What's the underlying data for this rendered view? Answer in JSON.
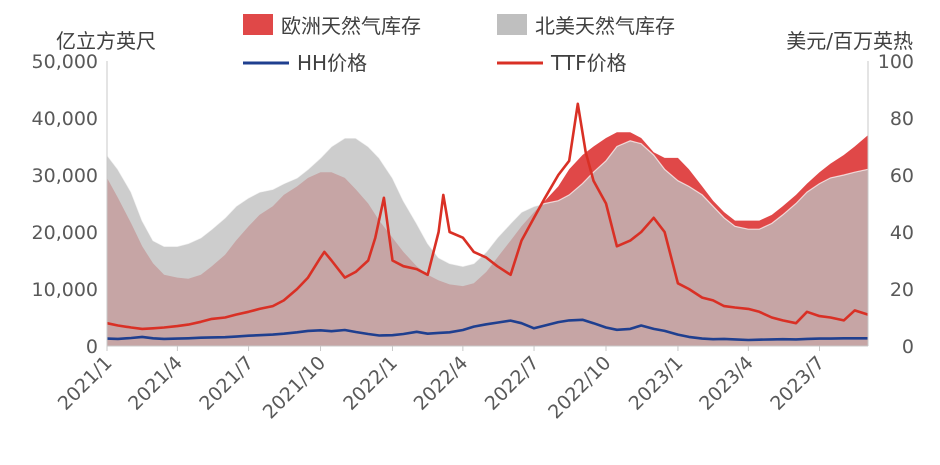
{
  "chart_data": {
    "type": "area",
    "left_axis_unit": "亿立方英尺",
    "right_axis_unit": "美元/百万英热",
    "y_left_lim": [
      0,
      50000
    ],
    "y_right_lim": [
      0,
      100
    ],
    "y_left_ticks": [
      "0",
      "10,000",
      "20,000",
      "30,000",
      "40,000",
      "50,000"
    ],
    "y_right_ticks": [
      "0",
      "20",
      "40",
      "60",
      "80",
      "100"
    ],
    "x_ticks": [
      "2021/1",
      "2021/4",
      "2021/7",
      "2021/10",
      "2022/1",
      "2022/4",
      "2022/7",
      "2022/10",
      "2023/1",
      "2023/4",
      "2023/7"
    ],
    "legend_position": "top-center",
    "colors": {
      "eu_storage": "#e04848",
      "us_storage": "#bfbfbf",
      "hh": "#1f3f8f",
      "ttf": "#d93025",
      "axis_text": "#595959"
    },
    "series": [
      {
        "name": "欧洲天然气库存",
        "axis": "left",
        "kind": "area",
        "points": [
          [
            "2021-01-01",
            29500
          ],
          [
            "2021-01-15",
            26000
          ],
          [
            "2021-02-01",
            21500
          ],
          [
            "2021-02-15",
            17500
          ],
          [
            "2021-03-01",
            14500
          ],
          [
            "2021-03-15",
            12500
          ],
          [
            "2021-04-01",
            12000
          ],
          [
            "2021-04-15",
            11800
          ],
          [
            "2021-05-01",
            12500
          ],
          [
            "2021-05-15",
            14000
          ],
          [
            "2021-06-01",
            16000
          ],
          [
            "2021-06-15",
            18500
          ],
          [
            "2021-07-01",
            21000
          ],
          [
            "2021-07-15",
            23000
          ],
          [
            "2021-08-01",
            24500
          ],
          [
            "2021-08-15",
            26500
          ],
          [
            "2021-09-01",
            28000
          ],
          [
            "2021-09-15",
            29500
          ],
          [
            "2021-10-01",
            30500
          ],
          [
            "2021-10-15",
            30500
          ],
          [
            "2021-11-01",
            29500
          ],
          [
            "2021-11-15",
            27500
          ],
          [
            "2021-12-01",
            25000
          ],
          [
            "2021-12-15",
            22000
          ],
          [
            "2022-01-01",
            19000
          ],
          [
            "2022-01-15",
            16500
          ],
          [
            "2022-02-01",
            14000
          ],
          [
            "2022-02-15",
            12500
          ],
          [
            "2022-03-01",
            11500
          ],
          [
            "2022-03-15",
            10800
          ],
          [
            "2022-04-01",
            10500
          ],
          [
            "2022-04-15",
            11000
          ],
          [
            "2022-05-01",
            13000
          ],
          [
            "2022-05-15",
            15500
          ],
          [
            "2022-06-01",
            18500
          ],
          [
            "2022-06-15",
            21000
          ],
          [
            "2022-07-01",
            23500
          ],
          [
            "2022-07-15",
            25500
          ],
          [
            "2022-08-01",
            28000
          ],
          [
            "2022-08-15",
            31000
          ],
          [
            "2022-09-01",
            33500
          ],
          [
            "2022-09-15",
            35000
          ],
          [
            "2022-10-01",
            36500
          ],
          [
            "2022-10-15",
            37500
          ],
          [
            "2022-11-01",
            37500
          ],
          [
            "2022-11-15",
            36500
          ],
          [
            "2022-12-01",
            34000
          ],
          [
            "2022-12-15",
            33000
          ],
          [
            "2023-01-01",
            33000
          ],
          [
            "2023-01-15",
            31000
          ],
          [
            "2023-02-01",
            28000
          ],
          [
            "2023-02-15",
            25500
          ],
          [
            "2023-03-01",
            23500
          ],
          [
            "2023-03-15",
            22000
          ],
          [
            "2023-04-01",
            22000
          ],
          [
            "2023-04-15",
            22000
          ],
          [
            "2023-05-01",
            23000
          ],
          [
            "2023-05-15",
            24500
          ],
          [
            "2023-06-01",
            26500
          ],
          [
            "2023-06-15",
            28500
          ],
          [
            "2023-07-01",
            30500
          ],
          [
            "2023-07-15",
            32000
          ],
          [
            "2023-08-01",
            33500
          ],
          [
            "2023-08-15",
            35000
          ],
          [
            "2023-09-01",
            37000
          ]
        ]
      },
      {
        "name": "北美天然气库存",
        "axis": "left",
        "kind": "area",
        "points": [
          [
            "2021-01-01",
            33500
          ],
          [
            "2021-01-15",
            31000
          ],
          [
            "2021-02-01",
            27000
          ],
          [
            "2021-02-15",
            22000
          ],
          [
            "2021-03-01",
            18500
          ],
          [
            "2021-03-15",
            17500
          ],
          [
            "2021-04-01",
            17500
          ],
          [
            "2021-04-15",
            18000
          ],
          [
            "2021-05-01",
            19000
          ],
          [
            "2021-05-15",
            20500
          ],
          [
            "2021-06-01",
            22500
          ],
          [
            "2021-06-15",
            24500
          ],
          [
            "2021-07-01",
            26000
          ],
          [
            "2021-07-15",
            27000
          ],
          [
            "2021-08-01",
            27500
          ],
          [
            "2021-08-15",
            28500
          ],
          [
            "2021-09-01",
            29500
          ],
          [
            "2021-09-15",
            31000
          ],
          [
            "2021-10-01",
            33000
          ],
          [
            "2021-10-15",
            35000
          ],
          [
            "2021-11-01",
            36500
          ],
          [
            "2021-11-15",
            36500
          ],
          [
            "2021-12-01",
            35000
          ],
          [
            "2021-12-15",
            33000
          ],
          [
            "2022-01-01",
            29500
          ],
          [
            "2022-01-15",
            25500
          ],
          [
            "2022-02-01",
            21500
          ],
          [
            "2022-02-15",
            18000
          ],
          [
            "2022-03-01",
            15500
          ],
          [
            "2022-03-15",
            14500
          ],
          [
            "2022-04-01",
            14000
          ],
          [
            "2022-04-15",
            14500
          ],
          [
            "2022-05-01",
            16500
          ],
          [
            "2022-05-15",
            19000
          ],
          [
            "2022-06-01",
            21500
          ],
          [
            "2022-06-15",
            23500
          ],
          [
            "2022-07-01",
            24500
          ],
          [
            "2022-07-15",
            25000
          ],
          [
            "2022-08-01",
            25500
          ],
          [
            "2022-08-15",
            26500
          ],
          [
            "2022-09-01",
            28500
          ],
          [
            "2022-09-15",
            30500
          ],
          [
            "2022-10-01",
            32500
          ],
          [
            "2022-10-15",
            35000
          ],
          [
            "2022-11-01",
            36000
          ],
          [
            "2022-11-15",
            35500
          ],
          [
            "2022-12-01",
            33500
          ],
          [
            "2022-12-15",
            31000
          ],
          [
            "2023-01-01",
            29000
          ],
          [
            "2023-01-15",
            28000
          ],
          [
            "2023-02-01",
            26500
          ],
          [
            "2023-02-15",
            24500
          ],
          [
            "2023-03-01",
            22500
          ],
          [
            "2023-03-15",
            21000
          ],
          [
            "2023-04-01",
            20500
          ],
          [
            "2023-04-15",
            20500
          ],
          [
            "2023-05-01",
            21500
          ],
          [
            "2023-05-15",
            23000
          ],
          [
            "2023-06-01",
            25000
          ],
          [
            "2023-06-15",
            27000
          ],
          [
            "2023-07-01",
            28500
          ],
          [
            "2023-07-15",
            29500
          ],
          [
            "2023-08-01",
            30000
          ],
          [
            "2023-08-15",
            30500
          ],
          [
            "2023-09-01",
            31000
          ]
        ]
      },
      {
        "name": "HH价格",
        "axis": "right",
        "kind": "line",
        "points": [
          [
            "2021-01-01",
            2.6
          ],
          [
            "2021-01-15",
            2.5
          ],
          [
            "2021-02-01",
            2.8
          ],
          [
            "2021-02-15",
            3.2
          ],
          [
            "2021-03-01",
            2.7
          ],
          [
            "2021-03-15",
            2.5
          ],
          [
            "2021-04-01",
            2.6
          ],
          [
            "2021-04-15",
            2.7
          ],
          [
            "2021-05-01",
            2.9
          ],
          [
            "2021-05-15",
            3.0
          ],
          [
            "2021-06-01",
            3.1
          ],
          [
            "2021-06-15",
            3.3
          ],
          [
            "2021-07-01",
            3.6
          ],
          [
            "2021-07-15",
            3.8
          ],
          [
            "2021-08-01",
            4.0
          ],
          [
            "2021-08-15",
            4.3
          ],
          [
            "2021-09-01",
            4.8
          ],
          [
            "2021-09-15",
            5.3
          ],
          [
            "2021-10-01",
            5.5
          ],
          [
            "2021-10-15",
            5.2
          ],
          [
            "2021-11-01",
            5.6
          ],
          [
            "2021-11-15",
            4.9
          ],
          [
            "2021-12-01",
            4.2
          ],
          [
            "2021-12-15",
            3.7
          ],
          [
            "2022-01-01",
            3.8
          ],
          [
            "2022-01-15",
            4.2
          ],
          [
            "2022-02-01",
            5.0
          ],
          [
            "2022-02-15",
            4.3
          ],
          [
            "2022-03-01",
            4.6
          ],
          [
            "2022-03-15",
            4.8
          ],
          [
            "2022-04-01",
            5.6
          ],
          [
            "2022-04-15",
            6.8
          ],
          [
            "2022-05-01",
            7.6
          ],
          [
            "2022-05-15",
            8.2
          ],
          [
            "2022-06-01",
            8.9
          ],
          [
            "2022-06-15",
            8.0
          ],
          [
            "2022-07-01",
            6.2
          ],
          [
            "2022-07-15",
            7.2
          ],
          [
            "2022-08-01",
            8.4
          ],
          [
            "2022-08-15",
            9.0
          ],
          [
            "2022-09-01",
            9.2
          ],
          [
            "2022-09-15",
            8.0
          ],
          [
            "2022-10-01",
            6.5
          ],
          [
            "2022-10-15",
            5.7
          ],
          [
            "2022-11-01",
            6.0
          ],
          [
            "2022-11-15",
            7.2
          ],
          [
            "2022-12-01",
            6.0
          ],
          [
            "2022-12-15",
            5.3
          ],
          [
            "2023-01-01",
            4.0
          ],
          [
            "2023-01-15",
            3.2
          ],
          [
            "2023-02-01",
            2.6
          ],
          [
            "2023-02-15",
            2.4
          ],
          [
            "2023-03-01",
            2.5
          ],
          [
            "2023-03-15",
            2.3
          ],
          [
            "2023-04-01",
            2.1
          ],
          [
            "2023-04-15",
            2.2
          ],
          [
            "2023-05-01",
            2.3
          ],
          [
            "2023-05-15",
            2.4
          ],
          [
            "2023-06-01",
            2.3
          ],
          [
            "2023-06-15",
            2.5
          ],
          [
            "2023-07-01",
            2.6
          ],
          [
            "2023-07-15",
            2.6
          ],
          [
            "2023-08-01",
            2.7
          ],
          [
            "2023-08-15",
            2.7
          ],
          [
            "2023-09-01",
            2.7
          ]
        ]
      },
      {
        "name": "TTF价格",
        "axis": "right",
        "kind": "line",
        "points": [
          [
            "2021-01-01",
            8.0
          ],
          [
            "2021-01-15",
            7.2
          ],
          [
            "2021-02-01",
            6.5
          ],
          [
            "2021-02-15",
            6.0
          ],
          [
            "2021-03-01",
            6.2
          ],
          [
            "2021-03-15",
            6.5
          ],
          [
            "2021-04-01",
            7.0
          ],
          [
            "2021-04-15",
            7.5
          ],
          [
            "2021-05-01",
            8.5
          ],
          [
            "2021-05-15",
            9.5
          ],
          [
            "2021-06-01",
            10.0
          ],
          [
            "2021-06-15",
            11.0
          ],
          [
            "2021-07-01",
            12.0
          ],
          [
            "2021-07-15",
            13.0
          ],
          [
            "2021-08-01",
            14.0
          ],
          [
            "2021-08-15",
            16.0
          ],
          [
            "2021-09-01",
            20.0
          ],
          [
            "2021-09-15",
            24.0
          ],
          [
            "2021-10-01",
            31.0
          ],
          [
            "2021-10-06",
            33.0
          ],
          [
            "2021-10-15",
            30.0
          ],
          [
            "2021-11-01",
            24.0
          ],
          [
            "2021-11-15",
            26.0
          ],
          [
            "2021-12-01",
            30.0
          ],
          [
            "2021-12-10",
            38.0
          ],
          [
            "2021-12-21",
            52.0
          ],
          [
            "2022-01-01",
            30.0
          ],
          [
            "2022-01-15",
            28.0
          ],
          [
            "2022-02-01",
            27.0
          ],
          [
            "2022-02-15",
            25.0
          ],
          [
            "2022-03-01",
            40.0
          ],
          [
            "2022-03-07",
            53.0
          ],
          [
            "2022-03-15",
            40.0
          ],
          [
            "2022-04-01",
            38.0
          ],
          [
            "2022-04-15",
            33.0
          ],
          [
            "2022-05-01",
            31.0
          ],
          [
            "2022-05-15",
            28.0
          ],
          [
            "2022-06-01",
            25.0
          ],
          [
            "2022-06-15",
            37.0
          ],
          [
            "2022-07-01",
            45.0
          ],
          [
            "2022-07-15",
            52.0
          ],
          [
            "2022-08-01",
            60.0
          ],
          [
            "2022-08-15",
            65.0
          ],
          [
            "2022-08-26",
            85.0
          ],
          [
            "2022-09-05",
            68.0
          ],
          [
            "2022-09-15",
            58.0
          ],
          [
            "2022-10-01",
            50.0
          ],
          [
            "2022-10-15",
            35.0
          ],
          [
            "2022-11-01",
            37.0
          ],
          [
            "2022-11-15",
            40.0
          ],
          [
            "2022-12-01",
            45.0
          ],
          [
            "2022-12-15",
            40.0
          ],
          [
            "2023-01-01",
            22.0
          ],
          [
            "2023-01-15",
            20.0
          ],
          [
            "2023-02-01",
            17.0
          ],
          [
            "2023-02-15",
            16.0
          ],
          [
            "2023-03-01",
            14.0
          ],
          [
            "2023-03-15",
            13.5
          ],
          [
            "2023-04-01",
            13.0
          ],
          [
            "2023-04-15",
            12.0
          ],
          [
            "2023-05-01",
            10.0
          ],
          [
            "2023-05-15",
            9.0
          ],
          [
            "2023-06-01",
            8.0
          ],
          [
            "2023-06-15",
            12.0
          ],
          [
            "2023-07-01",
            10.5
          ],
          [
            "2023-07-15",
            10.0
          ],
          [
            "2023-08-01",
            9.0
          ],
          [
            "2023-08-15",
            12.5
          ],
          [
            "2023-09-01",
            11.0
          ]
        ]
      }
    ]
  }
}
